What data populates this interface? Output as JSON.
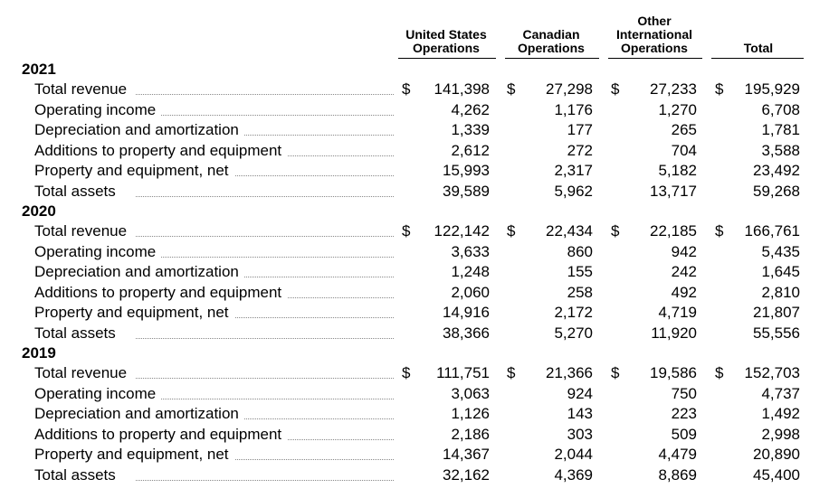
{
  "columns": [
    {
      "lines": [
        "United States",
        "Operations"
      ]
    },
    {
      "lines": [
        "Canadian",
        "Operations"
      ]
    },
    {
      "lines": [
        "Other",
        "International",
        "Operations"
      ]
    },
    {
      "lines": [
        "Total"
      ]
    }
  ],
  "currency_symbol": "$",
  "sections": [
    {
      "year": "2021",
      "rows": [
        {
          "label": "Total revenue",
          "values": [
            "141,398",
            "27,298",
            "27,233",
            "195,929"
          ],
          "dollar": true
        },
        {
          "label": "Operating income",
          "values": [
            "4,262",
            "1,176",
            "1,270",
            "6,708"
          ],
          "dollar": false
        },
        {
          "label": "Depreciation and amortization",
          "values": [
            "1,339",
            "177",
            "265",
            "1,781"
          ],
          "dollar": false
        },
        {
          "label": "Additions to property and equipment",
          "values": [
            "2,612",
            "272",
            "704",
            "3,588"
          ],
          "dollar": false
        },
        {
          "label": "Property and equipment, net",
          "values": [
            "15,993",
            "2,317",
            "5,182",
            "23,492"
          ],
          "dollar": false
        },
        {
          "label": "Total assets",
          "values": [
            "39,589",
            "5,962",
            "13,717",
            "59,268"
          ],
          "dollar": false
        }
      ]
    },
    {
      "year": "2020",
      "rows": [
        {
          "label": "Total revenue",
          "values": [
            "122,142",
            "22,434",
            "22,185",
            "166,761"
          ],
          "dollar": true
        },
        {
          "label": "Operating income",
          "values": [
            "3,633",
            "860",
            "942",
            "5,435"
          ],
          "dollar": false
        },
        {
          "label": "Depreciation and amortization",
          "values": [
            "1,248",
            "155",
            "242",
            "1,645"
          ],
          "dollar": false
        },
        {
          "label": "Additions to property and equipment",
          "values": [
            "2,060",
            "258",
            "492",
            "2,810"
          ],
          "dollar": false
        },
        {
          "label": "Property and equipment, net",
          "values": [
            "14,916",
            "2,172",
            "4,719",
            "21,807"
          ],
          "dollar": false
        },
        {
          "label": "Total assets",
          "values": [
            "38,366",
            "5,270",
            "11,920",
            "55,556"
          ],
          "dollar": false
        }
      ]
    },
    {
      "year": "2019",
      "rows": [
        {
          "label": "Total revenue",
          "values": [
            "111,751",
            "21,366",
            "19,586",
            "152,703"
          ],
          "dollar": true
        },
        {
          "label": "Operating income",
          "values": [
            "3,063",
            "924",
            "750",
            "4,737"
          ],
          "dollar": false
        },
        {
          "label": "Depreciation and amortization",
          "values": [
            "1,126",
            "143",
            "223",
            "1,492"
          ],
          "dollar": false
        },
        {
          "label": "Additions to property and equipment",
          "values": [
            "2,186",
            "303",
            "509",
            "2,998"
          ],
          "dollar": false
        },
        {
          "label": "Property and equipment, net",
          "values": [
            "14,367",
            "2,044",
            "4,479",
            "20,890"
          ],
          "dollar": false
        },
        {
          "label": "Total assets",
          "values": [
            "32,162",
            "4,369",
            "8,869",
            "45,400"
          ],
          "dollar": false
        }
      ]
    }
  ]
}
